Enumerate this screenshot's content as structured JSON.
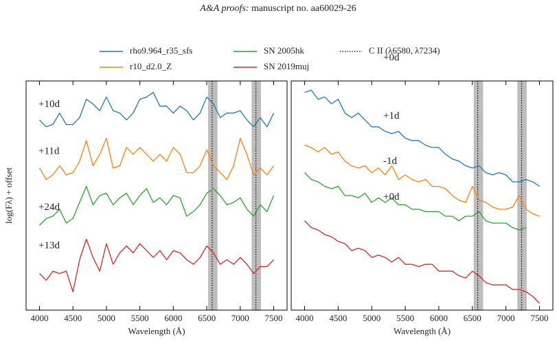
{
  "header": {
    "journal": "A&A proofs:",
    "text": "manuscript no. aa60029-26"
  },
  "chart_data": [
    {
      "type": "line",
      "x": [
        4000,
        4100,
        4200,
        4300,
        4400,
        4500,
        4600,
        4700,
        4800,
        4900,
        5000,
        5100,
        5200,
        5300,
        5400,
        5500,
        5600,
        5700,
        5800,
        5900,
        6000,
        6100,
        6200,
        6300,
        6400,
        6500,
        6600,
        6700,
        6800,
        6900,
        7000,
        7100,
        7200,
        7300,
        7400,
        7500
      ],
      "xlim": [
        3800,
        7700
      ],
      "ylim": [
        0,
        10
      ],
      "xticks": [
        4000,
        4500,
        5000,
        5500,
        6000,
        6500,
        7000,
        7500
      ],
      "xlabel": "Wavelength (Å)",
      "ylabel": "log(Fλ) + offset",
      "shaded_regions": [
        [
          6520,
          6660
        ],
        [
          7170,
          7310
        ]
      ],
      "reference_lines": {
        "name": "C II (λ6580, λ7234)",
        "values": [
          6580,
          7234
        ],
        "color": "#000000"
      },
      "series": [
        {
          "name": "rho9.964_r35_sfs",
          "label": "+10d",
          "color": "#1f77b4",
          "values": [
            8.3,
            8.0,
            8.1,
            8.6,
            8.1,
            8.1,
            8.4,
            9.2,
            9.0,
            8.7,
            9.3,
            8.7,
            8.6,
            8.3,
            8.6,
            9.2,
            9.3,
            9.5,
            8.9,
            8.9,
            8.6,
            8.9,
            8.7,
            8.3,
            8.6,
            9.3,
            9.0,
            8.4,
            8.6,
            8.6,
            8.7,
            8.3,
            8.0,
            8.4,
            8.0,
            8.6
          ]
        },
        {
          "name": "r10_d2.0_Z",
          "label": "+11d",
          "color": "#ff7f0e",
          "values": [
            6.2,
            5.7,
            5.9,
            6.3,
            5.9,
            6.0,
            6.5,
            7.4,
            6.3,
            6.8,
            7.5,
            6.2,
            6.3,
            7.1,
            6.8,
            7.1,
            6.8,
            6.5,
            6.8,
            6.5,
            7.1,
            6.8,
            6.0,
            6.0,
            6.3,
            7.0,
            6.3,
            6.0,
            5.7,
            6.3,
            7.5,
            6.8,
            5.9,
            6.2,
            5.9,
            6.3
          ]
        },
        {
          "name": "SN 2005hk",
          "label": "+24d",
          "color": "#2ca02c",
          "values": [
            3.7,
            4.0,
            4.1,
            4.4,
            3.8,
            4.0,
            4.7,
            5.4,
            4.6,
            5.0,
            5.1,
            4.6,
            4.9,
            5.1,
            4.6,
            5.0,
            5.3,
            4.7,
            4.9,
            4.6,
            5.0,
            4.9,
            4.1,
            4.3,
            4.6,
            5.1,
            5.3,
            5.0,
            4.6,
            4.7,
            4.9,
            4.4,
            4.1,
            4.6,
            4.3,
            5.0
          ]
        },
        {
          "name": "SN 2019muj",
          "label": "+13d",
          "color": "#d62728",
          "values": [
            1.6,
            1.3,
            1.7,
            1.6,
            1.7,
            0.8,
            2.2,
            3.1,
            2.3,
            1.7,
            2.9,
            2.0,
            2.5,
            2.8,
            2.5,
            2.9,
            2.6,
            2.3,
            2.6,
            2.2,
            2.6,
            2.5,
            2.2,
            2.0,
            2.3,
            2.8,
            2.5,
            2.0,
            2.2,
            2.0,
            2.3,
            2.0,
            1.6,
            1.9,
            1.9,
            2.2
          ]
        }
      ]
    },
    {
      "type": "line",
      "x": [
        4000,
        4100,
        4200,
        4300,
        4400,
        4500,
        4600,
        4700,
        4800,
        4900,
        5000,
        5100,
        5200,
        5300,
        5400,
        5500,
        5600,
        5700,
        5800,
        5900,
        6000,
        6100,
        6200,
        6300,
        6400,
        6500,
        6600,
        6700,
        6800,
        6900,
        7000,
        7100,
        7200,
        7300,
        7400,
        7500
      ],
      "xlim": [
        3800,
        7700
      ],
      "ylim": [
        0,
        10
      ],
      "xticks": [
        4000,
        4500,
        5000,
        5500,
        6000,
        6500,
        7000,
        7500
      ],
      "xlabel": "Wavelength (Å)",
      "shaded_regions": [
        [
          6520,
          6660
        ],
        [
          7170,
          7310
        ]
      ],
      "reference_lines": {
        "values": [
          6580,
          7234
        ],
        "color": "#000000"
      },
      "series": [
        {
          "name": "rho9.964_r35_sfs",
          "label": "+0d",
          "color": "#1f77b4",
          "values": [
            9.5,
            9.6,
            9.2,
            9.3,
            9.0,
            9.2,
            8.6,
            8.4,
            8.6,
            8.3,
            8.0,
            8.0,
            7.8,
            7.7,
            7.8,
            7.5,
            7.4,
            7.4,
            7.2,
            7.1,
            7.1,
            6.8,
            6.6,
            6.5,
            6.3,
            6.2,
            6.3,
            6.0,
            5.9,
            6.0,
            5.9,
            5.6,
            5.6,
            5.7,
            5.6,
            5.4
          ]
        },
        {
          "name": "r10_d2.0_Z",
          "label": "+1d",
          "color": "#ff7f0e",
          "values": [
            7.2,
            7.1,
            6.9,
            7.1,
            6.8,
            6.9,
            6.5,
            6.3,
            6.2,
            6.3,
            6.0,
            6.2,
            5.9,
            6.3,
            5.7,
            5.9,
            5.7,
            5.6,
            5.7,
            5.4,
            5.4,
            5.3,
            5.0,
            4.8,
            4.7,
            5.4,
            4.8,
            4.7,
            4.5,
            4.4,
            4.4,
            4.5,
            5.0,
            4.4,
            4.2,
            4.1
          ]
        },
        {
          "name": "SN 2005hk",
          "label": "-1d",
          "color": "#2ca02c",
          "values": [
            6.0,
            5.7,
            5.6,
            5.4,
            5.3,
            5.4,
            5.0,
            5.0,
            4.9,
            5.1,
            4.7,
            4.9,
            4.7,
            4.9,
            4.6,
            4.6,
            4.4,
            4.4,
            4.3,
            4.3,
            4.3,
            4.1,
            4.1,
            3.9,
            4.1,
            4.1,
            4.3,
            3.9,
            3.8,
            3.8,
            3.8,
            3.6,
            3.5,
            3.6,
            null,
            null
          ]
        },
        {
          "name": "SN 2019muj",
          "label": "+0d",
          "color": "#d62728",
          "values": [
            3.9,
            3.6,
            3.5,
            3.3,
            3.2,
            3.0,
            2.9,
            2.6,
            2.7,
            2.6,
            2.3,
            2.4,
            2.3,
            2.1,
            2.3,
            2.0,
            2.0,
            1.9,
            2.0,
            2.0,
            1.7,
            1.7,
            1.7,
            1.5,
            1.4,
            1.7,
            1.5,
            1.2,
            1.1,
            1.1,
            1.1,
            0.9,
            0.9,
            0.8,
            0.6,
            0.3
          ]
        }
      ]
    }
  ]
}
